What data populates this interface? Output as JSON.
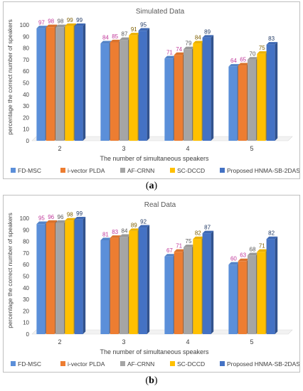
{
  "captions": [
    "(a)",
    "(b)"
  ],
  "chart_data": [
    {
      "type": "bar",
      "title": "Simulated Data",
      "xlabel": "The number of simultaneous speakers",
      "ylabel": "percentage the correct number of speakers",
      "categories": [
        "2",
        "3",
        "4",
        "5"
      ],
      "ylim": [
        0,
        100
      ],
      "yticks": [
        0,
        10,
        20,
        30,
        40,
        50,
        60,
        70,
        80,
        90,
        100
      ],
      "grid": false,
      "legend": "bottom",
      "series": [
        {
          "name": "FD-MSC",
          "color": "#5b8fd9",
          "label_color": "#c0389a",
          "values": [
            97,
            84,
            71,
            64
          ]
        },
        {
          "name": "i-vector PLDA",
          "color": "#ed7d31",
          "label_color": "#c0389a",
          "values": [
            98,
            85,
            74,
            65
          ]
        },
        {
          "name": "AF-CRNN",
          "color": "#a5a5a5",
          "label_color": "#555555",
          "values": [
            98,
            87,
            79,
            70
          ]
        },
        {
          "name": "SC-DCCD",
          "color": "#ffc000",
          "label_color": "#7f6000",
          "values": [
            99,
            91,
            84,
            75
          ]
        },
        {
          "name": "Proposed HNMA-SB-2DASRP",
          "color": "#4472c4",
          "label_color": "#1f3864",
          "values": [
            99,
            95,
            89,
            83
          ]
        }
      ]
    },
    {
      "type": "bar",
      "title": "Real Data",
      "xlabel": "The number of simultaneous speakers",
      "ylabel": "percentage the correct number of speakers",
      "categories": [
        "2",
        "3",
        "4",
        "5"
      ],
      "ylim": [
        0,
        100
      ],
      "yticks": [
        0,
        10,
        20,
        30,
        40,
        50,
        60,
        70,
        80,
        90,
        100
      ],
      "grid": false,
      "legend": "bottom",
      "series": [
        {
          "name": "FD-MSC",
          "color": "#5b8fd9",
          "label_color": "#c0389a",
          "values": [
            95,
            81,
            67,
            60
          ]
        },
        {
          "name": "i-vector PLDA",
          "color": "#ed7d31",
          "label_color": "#c0389a",
          "values": [
            96,
            83,
            71,
            63
          ]
        },
        {
          "name": "AF-CRNN",
          "color": "#a5a5a5",
          "label_color": "#555555",
          "values": [
            96,
            84,
            75,
            68
          ]
        },
        {
          "name": "SC-DCCD",
          "color": "#ffc000",
          "label_color": "#7f6000",
          "values": [
            98,
            89,
            82,
            71
          ]
        },
        {
          "name": "Proposed HNMA-SB-2DASRP",
          "color": "#4472c4",
          "label_color": "#1f3864",
          "values": [
            99,
            92,
            87,
            82
          ]
        }
      ]
    }
  ]
}
